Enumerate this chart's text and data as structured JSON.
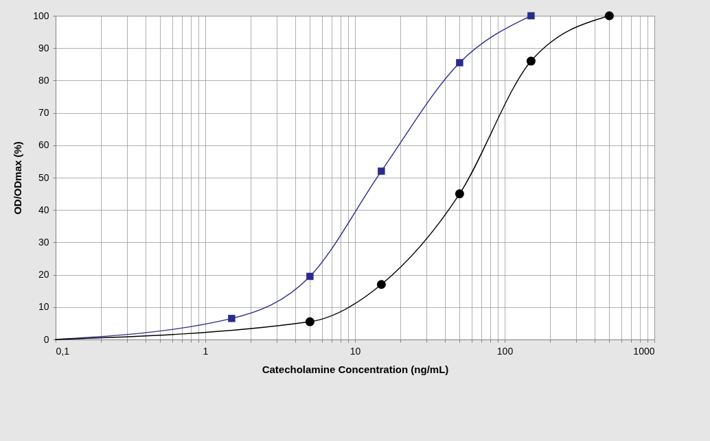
{
  "chart_data": {
    "type": "line",
    "xlabel": "Catecholamine Concentration (ng/mL)",
    "ylabel": "OD/ODmax (%)",
    "log": "x",
    "grid": true,
    "xlim": [
      0.1,
      1000
    ],
    "ylim": [
      0,
      100
    ],
    "xticks": [
      {
        "value": 0.1,
        "label": "0,1"
      },
      {
        "value": 0.2,
        "label": null
      },
      {
        "value": 0.3,
        "label": null
      },
      {
        "value": 0.4,
        "label": null
      },
      {
        "value": 0.5,
        "label": null
      },
      {
        "value": 0.6,
        "label": null
      },
      {
        "value": 0.7,
        "label": null
      },
      {
        "value": 0.8,
        "label": null
      },
      {
        "value": 0.9,
        "label": null
      },
      1,
      {
        "value": 2,
        "label": null
      },
      {
        "value": 3,
        "label": null
      },
      {
        "value": 4,
        "label": null
      },
      {
        "value": 5,
        "label": null
      },
      {
        "value": 6,
        "label": null
      },
      {
        "value": 7,
        "label": null
      },
      {
        "value": 8,
        "label": null
      },
      {
        "value": 9,
        "label": null
      },
      10,
      {
        "value": 20,
        "label": null
      },
      {
        "value": 30,
        "label": null
      },
      {
        "value": 40,
        "label": null
      },
      {
        "value": 50,
        "label": null
      },
      {
        "value": 60,
        "label": null
      },
      {
        "value": 70,
        "label": null
      },
      {
        "value": 80,
        "label": null
      },
      {
        "value": 90,
        "label": null
      },
      100,
      {
        "value": 200,
        "label": null
      },
      {
        "value": 300,
        "label": null
      },
      {
        "value": 400,
        "label": null
      },
      {
        "value": 500,
        "label": null
      },
      {
        "value": 600,
        "label": null
      },
      {
        "value": 700,
        "label": null
      },
      {
        "value": 800,
        "label": null
      },
      {
        "value": 900,
        "label": null
      },
      1000
    ],
    "yticks": [
      0,
      10,
      20,
      30,
      40,
      50,
      60,
      70,
      80,
      90,
      100
    ],
    "series": [
      {
        "marker": "none",
        "color": "#2b2b8c",
        "x": [
          0.1,
          1.5,
          5,
          15,
          50,
          150
        ],
        "values": [
          0,
          6.5,
          19.5,
          52,
          85.5,
          100
        ]
      },
      {
        "marker": "none",
        "color": "#000000",
        "x": [
          0.1,
          5,
          15,
          50,
          150,
          500
        ],
        "values": [
          0,
          5.5,
          17,
          45,
          86,
          100
        ]
      },
      {
        "type": "scatter",
        "marker": "square",
        "color": "#2b2b8c",
        "x": [
          1.5,
          5,
          15,
          50,
          150
        ],
        "values": [
          6.5,
          19.5,
          52,
          85.5,
          100
        ]
      },
      {
        "type": "scatter",
        "marker": "circle",
        "color": "#000000",
        "x": [
          5,
          15,
          50,
          150,
          500
        ],
        "values": [
          5.5,
          17,
          45,
          86,
          100
        ]
      }
    ]
  }
}
